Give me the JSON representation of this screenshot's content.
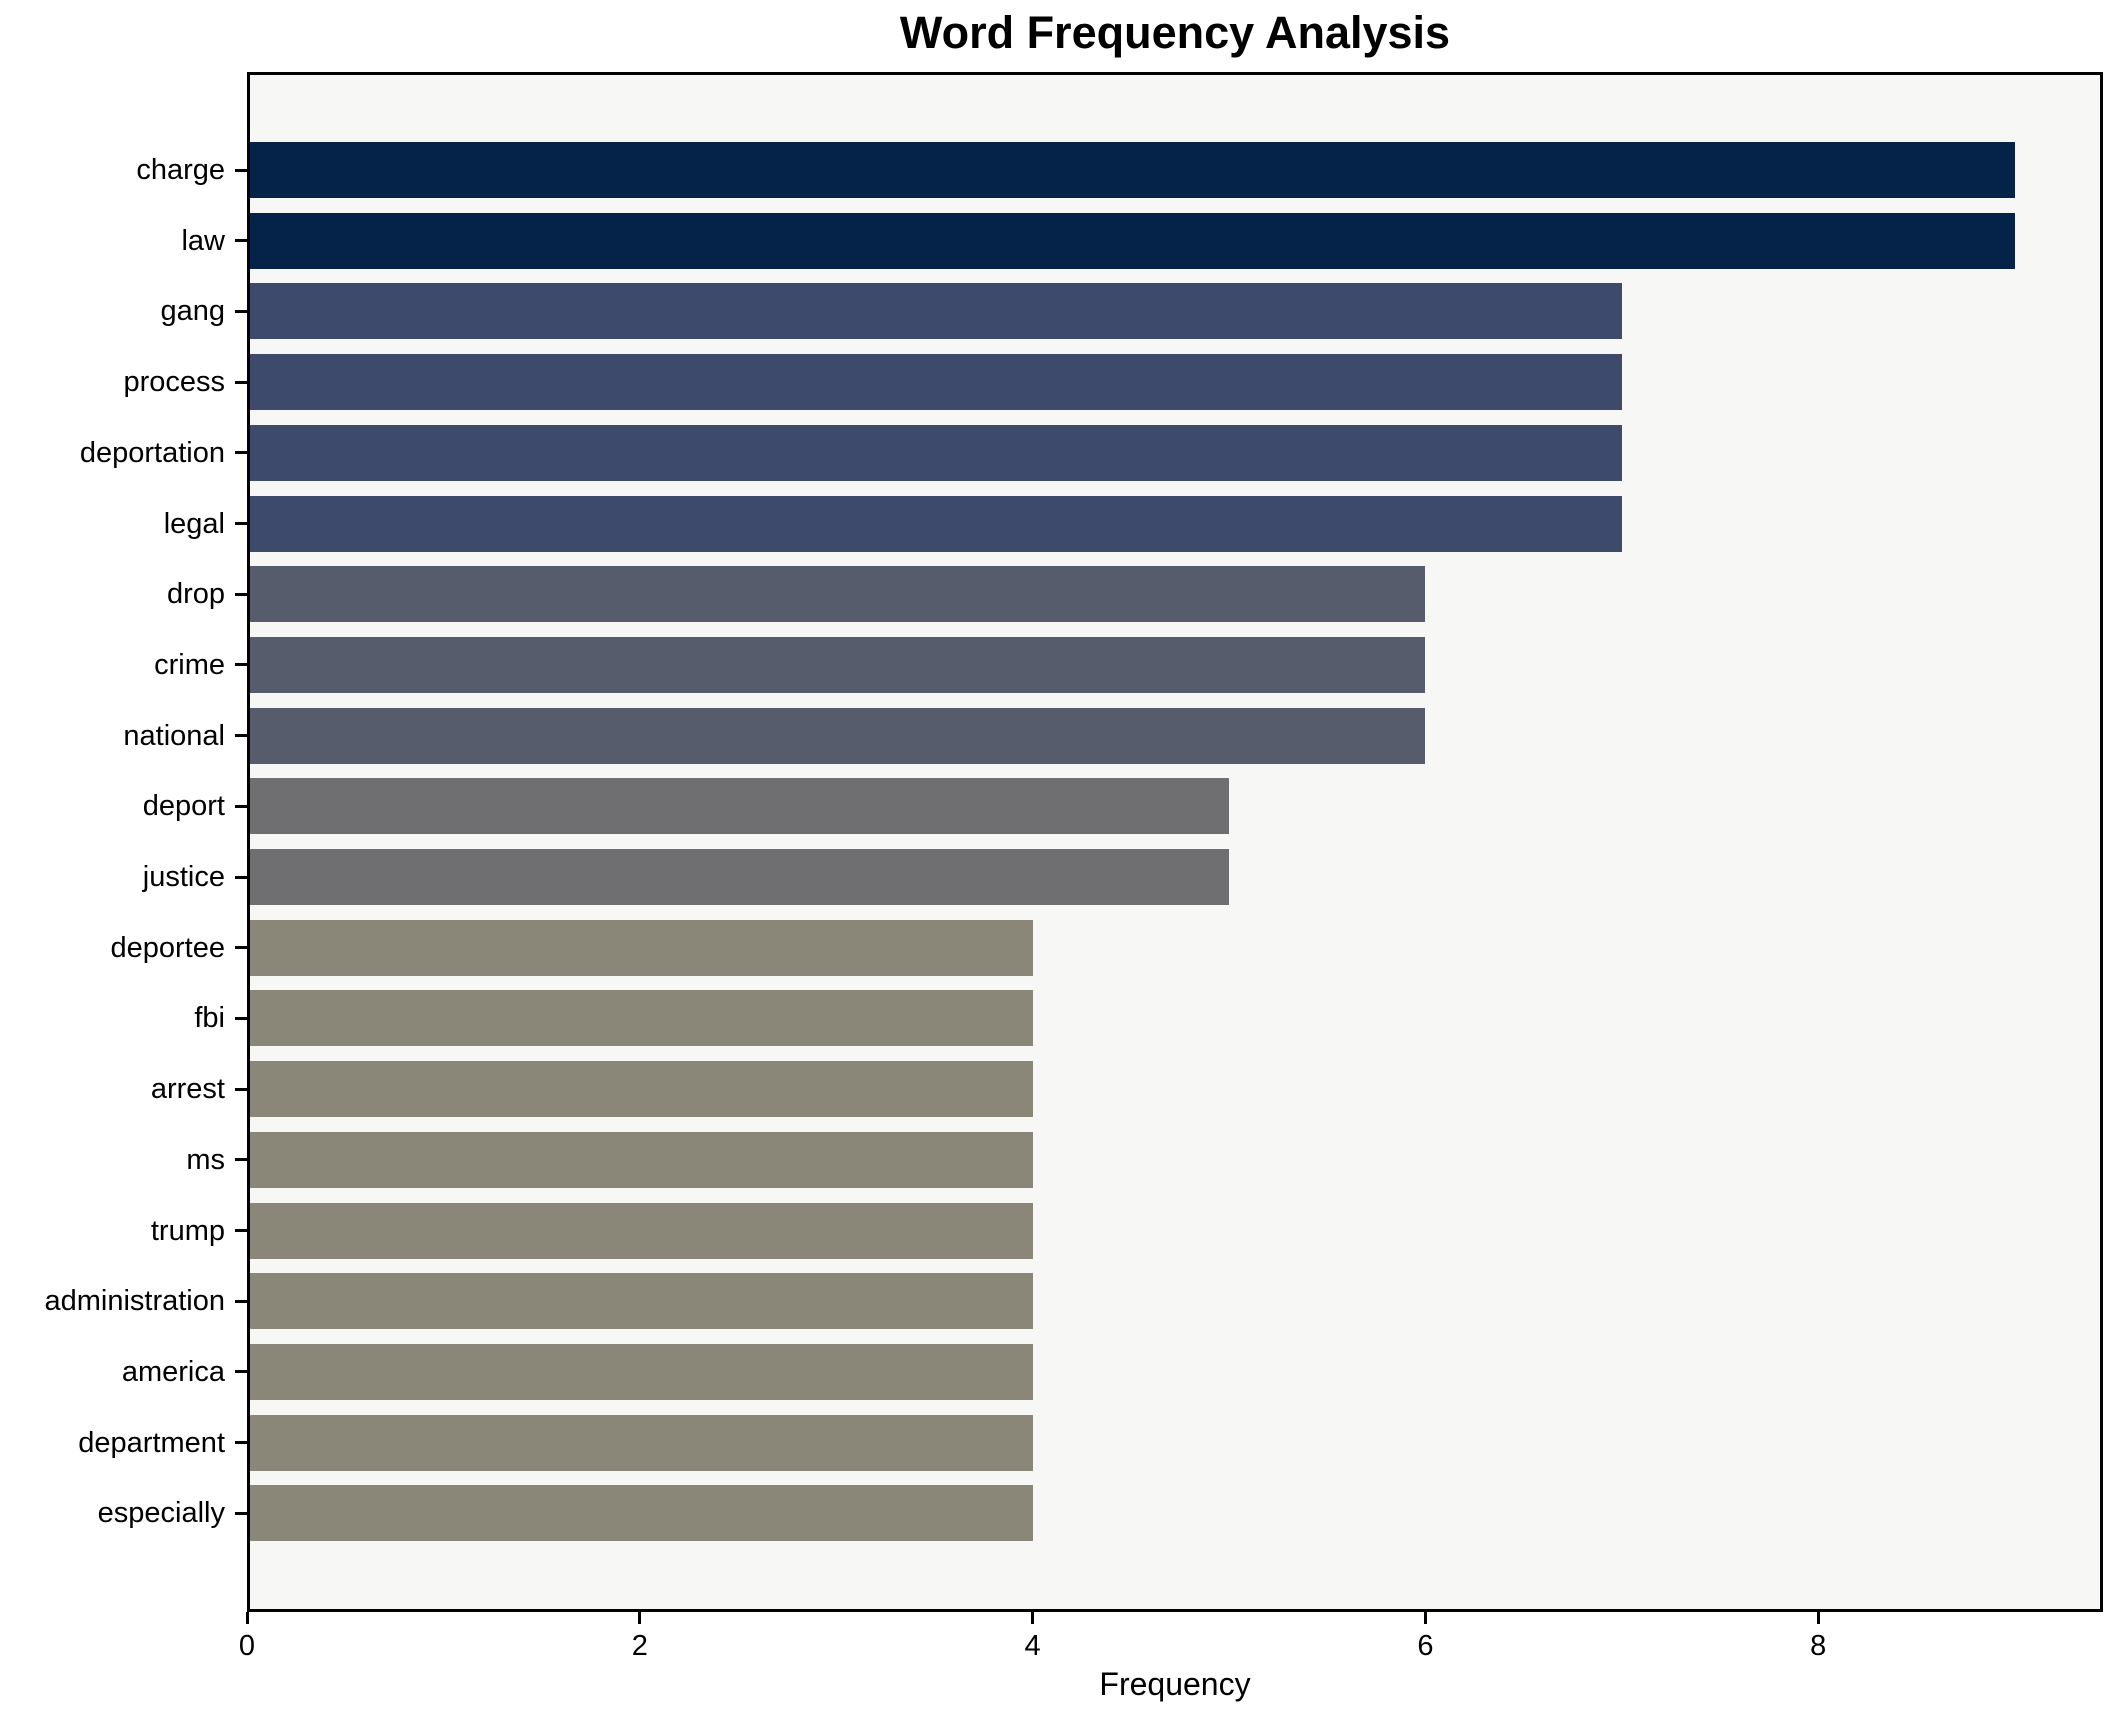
{
  "chart_data": {
    "type": "bar",
    "orientation": "horizontal",
    "title": "Word Frequency Analysis",
    "xlabel": "Frequency",
    "ylabel": "",
    "categories": [
      "charge",
      "law",
      "gang",
      "process",
      "deportation",
      "legal",
      "drop",
      "crime",
      "national",
      "deport",
      "justice",
      "deportee",
      "fbi",
      "arrest",
      "ms",
      "trump",
      "administration",
      "america",
      "department",
      "especially"
    ],
    "values": [
      9,
      9,
      7,
      7,
      7,
      7,
      6,
      6,
      6,
      5,
      5,
      4,
      4,
      4,
      4,
      4,
      4,
      4,
      4,
      4
    ],
    "bar_colors": [
      "#052349",
      "#052349",
      "#3d4a6b",
      "#3d4a6b",
      "#3d4a6b",
      "#3d4a6b",
      "#565c6b",
      "#565c6b",
      "#565c6b",
      "#6f6f71",
      "#6f6f71",
      "#8a8678",
      "#8a8678",
      "#8a8678",
      "#8a8678",
      "#8a8678",
      "#8a8678",
      "#8a8678",
      "#8a8678",
      "#8a8678"
    ],
    "xlim": [
      0,
      9.45
    ],
    "xticks": [
      0,
      2,
      4,
      6,
      8
    ],
    "grid": false,
    "legend": "none",
    "plot_background": "#f7f7f6",
    "figure_background": "#ffffff",
    "spine_color": "#000000"
  }
}
